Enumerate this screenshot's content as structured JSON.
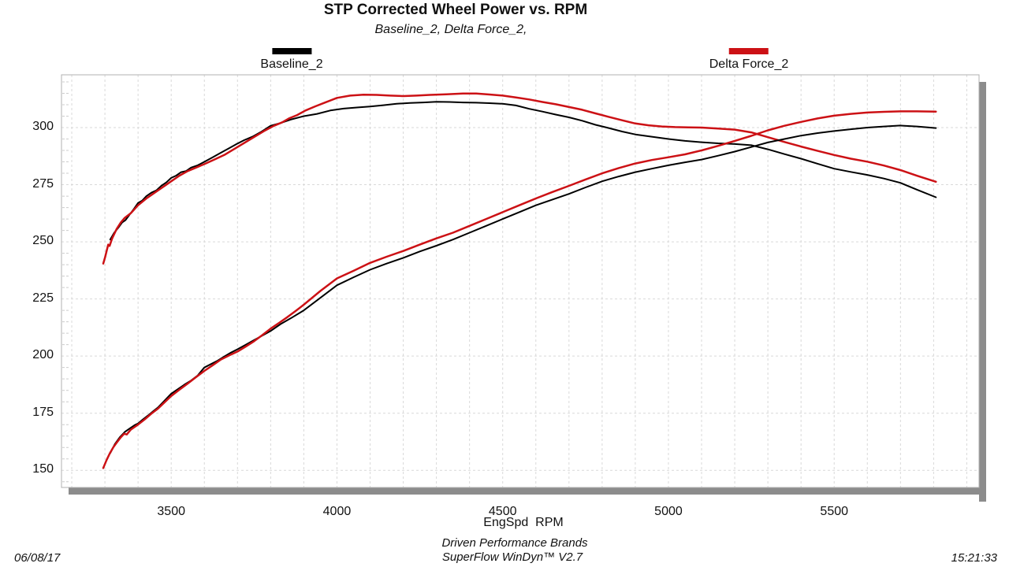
{
  "header": {
    "title": "STP Corrected Wheel Power vs. RPM",
    "subtitle": "Baseline_2, Delta Force_2,"
  },
  "legend": [
    {
      "label": "Baseline_2",
      "color": "#000000"
    },
    {
      "label": "Delta Force_2",
      "color": "#cc1115"
    }
  ],
  "footer": {
    "date": "06/08/17",
    "brand_line": "Driven Performance Brands",
    "software_line": "SuperFlow WinDyn™ V2.7",
    "time": "15:21:33"
  },
  "chart_data": {
    "type": "line",
    "title": "STP Corrected Wheel Power vs. RPM",
    "subtitle": "Baseline_2, Delta Force_2,",
    "xlabel": "EngSpd  RPM",
    "ylabel": "",
    "xlim": [
      3169,
      5937
    ],
    "ylim": [
      142.5,
      323.1
    ],
    "x_ticks": [
      3500,
      4000,
      4500,
      5000,
      5500
    ],
    "y_ticks": [
      150,
      175,
      200,
      225,
      250,
      275,
      300
    ],
    "x_grid_step": 100,
    "y_minor_tick_step": 5,
    "grid": "dashed",
    "legend_position": "top",
    "colors": {
      "grid": "#d9d9d9",
      "minor_tick": "#cccccc",
      "border": "#b0b0b0",
      "shadow": "#8c8c8c",
      "baseline": "#000000",
      "delta_force": "#cc1115"
    },
    "series": [
      {
        "name": "Baseline_2 upper curve",
        "color": "#000000",
        "width": 2,
        "points": [
          [
            3316,
            251
          ],
          [
            3328,
            254
          ],
          [
            3342,
            256.5
          ],
          [
            3352,
            258.5
          ],
          [
            3362,
            259.5
          ],
          [
            3375,
            262
          ],
          [
            3388,
            264.5
          ],
          [
            3400,
            267
          ],
          [
            3412,
            268
          ],
          [
            3425,
            270
          ],
          [
            3440,
            271.5
          ],
          [
            3455,
            272.5
          ],
          [
            3470,
            274.5
          ],
          [
            3485,
            276
          ],
          [
            3500,
            278
          ],
          [
            3515,
            279
          ],
          [
            3530,
            280.5
          ],
          [
            3545,
            281
          ],
          [
            3560,
            282.5
          ],
          [
            3580,
            283.5
          ],
          [
            3600,
            285
          ],
          [
            3625,
            287
          ],
          [
            3650,
            289
          ],
          [
            3675,
            291
          ],
          [
            3700,
            293
          ],
          [
            3720,
            294.5
          ],
          [
            3745,
            296
          ],
          [
            3770,
            298
          ],
          [
            3800,
            300.8
          ],
          [
            3830,
            302
          ],
          [
            3860,
            303.5
          ],
          [
            3900,
            305
          ],
          [
            3940,
            306
          ],
          [
            3980,
            307.5
          ],
          [
            4020,
            308.3
          ],
          [
            4060,
            308.8
          ],
          [
            4100,
            309.2
          ],
          [
            4140,
            309.8
          ],
          [
            4180,
            310.4
          ],
          [
            4220,
            310.8
          ],
          [
            4260,
            311
          ],
          [
            4300,
            311.3
          ],
          [
            4340,
            311.2
          ],
          [
            4380,
            311
          ],
          [
            4420,
            310.9
          ],
          [
            4460,
            310.7
          ],
          [
            4500,
            310.4
          ],
          [
            4540,
            309.7
          ],
          [
            4580,
            308.2
          ],
          [
            4620,
            307
          ],
          [
            4660,
            305.7
          ],
          [
            4700,
            304.5
          ],
          [
            4740,
            303
          ],
          [
            4780,
            301.2
          ],
          [
            4820,
            299.8
          ],
          [
            4860,
            298.3
          ],
          [
            4900,
            297
          ],
          [
            4950,
            296
          ],
          [
            5000,
            295
          ],
          [
            5050,
            294.2
          ],
          [
            5100,
            293.6
          ],
          [
            5150,
            293.1
          ],
          [
            5200,
            292.8
          ],
          [
            5250,
            292.3
          ],
          [
            5300,
            290.5
          ],
          [
            5350,
            288.4
          ],
          [
            5400,
            286.4
          ],
          [
            5450,
            284.2
          ],
          [
            5500,
            282
          ],
          [
            5550,
            280.6
          ],
          [
            5600,
            279.3
          ],
          [
            5650,
            277.7
          ],
          [
            5700,
            275.8
          ],
          [
            5750,
            272.8
          ],
          [
            5807,
            269.5
          ]
        ]
      },
      {
        "name": "Delta Force_2 upper curve",
        "color": "#cc1115",
        "width": 2.5,
        "points": [
          [
            3295,
            240.5
          ],
          [
            3301,
            243.5
          ],
          [
            3306,
            246.5
          ],
          [
            3310,
            248.8
          ],
          [
            3314,
            248.2
          ],
          [
            3322,
            251.5
          ],
          [
            3335,
            255.5
          ],
          [
            3348,
            258.5
          ],
          [
            3360,
            260.5
          ],
          [
            3378,
            262.5
          ],
          [
            3400,
            266
          ],
          [
            3425,
            269
          ],
          [
            3450,
            271.5
          ],
          [
            3475,
            274
          ],
          [
            3500,
            276.5
          ],
          [
            3525,
            279
          ],
          [
            3550,
            281
          ],
          [
            3575,
            282.5
          ],
          [
            3600,
            284
          ],
          [
            3630,
            286
          ],
          [
            3660,
            288
          ],
          [
            3700,
            291.5
          ],
          [
            3740,
            295
          ],
          [
            3780,
            298.5
          ],
          [
            3810,
            300.8
          ],
          [
            3835,
            302.3
          ],
          [
            3855,
            304
          ],
          [
            3880,
            305.5
          ],
          [
            3905,
            307.5
          ],
          [
            3935,
            309.3
          ],
          [
            3965,
            311
          ],
          [
            4000,
            313
          ],
          [
            4040,
            314
          ],
          [
            4080,
            314.4
          ],
          [
            4120,
            314.3
          ],
          [
            4160,
            314
          ],
          [
            4200,
            313.8
          ],
          [
            4240,
            314
          ],
          [
            4280,
            314.3
          ],
          [
            4330,
            314.6
          ],
          [
            4380,
            314.9
          ],
          [
            4420,
            314.9
          ],
          [
            4460,
            314.5
          ],
          [
            4500,
            314
          ],
          [
            4540,
            313.2
          ],
          [
            4580,
            312.3
          ],
          [
            4620,
            311.2
          ],
          [
            4660,
            310.2
          ],
          [
            4700,
            309
          ],
          [
            4740,
            307.8
          ],
          [
            4780,
            306.2
          ],
          [
            4820,
            304.7
          ],
          [
            4860,
            303.2
          ],
          [
            4900,
            301.8
          ],
          [
            4940,
            301
          ],
          [
            4980,
            300.5
          ],
          [
            5020,
            300.2
          ],
          [
            5060,
            300.1
          ],
          [
            5100,
            300
          ],
          [
            5150,
            299.6
          ],
          [
            5200,
            299.1
          ],
          [
            5250,
            297.9
          ],
          [
            5300,
            295.8
          ],
          [
            5350,
            293.7
          ],
          [
            5400,
            291.7
          ],
          [
            5450,
            289.8
          ],
          [
            5500,
            288
          ],
          [
            5550,
            286.4
          ],
          [
            5600,
            285.1
          ],
          [
            5650,
            283.4
          ],
          [
            5700,
            281.4
          ],
          [
            5750,
            278.9
          ],
          [
            5807,
            276.3
          ]
        ]
      },
      {
        "name": "Baseline_2 lower curve",
        "color": "#000000",
        "width": 2,
        "points": [
          [
            3316,
            157.5
          ],
          [
            3330,
            161.5
          ],
          [
            3345,
            164.5
          ],
          [
            3360,
            166.8
          ],
          [
            3375,
            168.3
          ],
          [
            3390,
            169.8
          ],
          [
            3400,
            170.5
          ],
          [
            3415,
            172.3
          ],
          [
            3430,
            174
          ],
          [
            3445,
            175.8
          ],
          [
            3460,
            177.5
          ],
          [
            3480,
            180.5
          ],
          [
            3500,
            183.5
          ],
          [
            3520,
            185.5
          ],
          [
            3540,
            187.5
          ],
          [
            3560,
            189.3
          ],
          [
            3580,
            191.5
          ],
          [
            3600,
            195
          ],
          [
            3620,
            196.5
          ],
          [
            3640,
            198
          ],
          [
            3660,
            199.8
          ],
          [
            3680,
            201.5
          ],
          [
            3700,
            203
          ],
          [
            3725,
            205
          ],
          [
            3750,
            207
          ],
          [
            3775,
            209
          ],
          [
            3800,
            211
          ],
          [
            3830,
            214
          ],
          [
            3860,
            216.5
          ],
          [
            3900,
            220
          ],
          [
            3950,
            225.5
          ],
          [
            4000,
            231
          ],
          [
            4050,
            234.5
          ],
          [
            4100,
            237.8
          ],
          [
            4150,
            240.5
          ],
          [
            4200,
            243
          ],
          [
            4250,
            245.8
          ],
          [
            4300,
            248.3
          ],
          [
            4350,
            251
          ],
          [
            4400,
            254
          ],
          [
            4450,
            257
          ],
          [
            4500,
            260
          ],
          [
            4550,
            263
          ],
          [
            4600,
            266
          ],
          [
            4650,
            268.5
          ],
          [
            4700,
            271
          ],
          [
            4750,
            273.8
          ],
          [
            4800,
            276.5
          ],
          [
            4850,
            278.6
          ],
          [
            4900,
            280.5
          ],
          [
            4950,
            282
          ],
          [
            5000,
            283.5
          ],
          [
            5050,
            284.8
          ],
          [
            5100,
            286
          ],
          [
            5150,
            287.7
          ],
          [
            5200,
            289.5
          ],
          [
            5250,
            291.5
          ],
          [
            5300,
            293.5
          ],
          [
            5350,
            295
          ],
          [
            5400,
            296.5
          ],
          [
            5450,
            297.6
          ],
          [
            5500,
            298.5
          ],
          [
            5550,
            299.3
          ],
          [
            5600,
            300
          ],
          [
            5650,
            300.5
          ],
          [
            5700,
            300.9
          ],
          [
            5750,
            300.5
          ],
          [
            5807,
            299.8
          ]
        ]
      },
      {
        "name": "Delta Force_2 lower curve",
        "color": "#cc1115",
        "width": 2.5,
        "points": [
          [
            3295,
            151
          ],
          [
            3305,
            154.5
          ],
          [
            3315,
            157.5
          ],
          [
            3325,
            160
          ],
          [
            3335,
            162
          ],
          [
            3348,
            164.5
          ],
          [
            3358,
            166
          ],
          [
            3366,
            165.7
          ],
          [
            3378,
            167.8
          ],
          [
            3390,
            169
          ],
          [
            3400,
            170
          ],
          [
            3420,
            172.3
          ],
          [
            3440,
            174.8
          ],
          [
            3460,
            177
          ],
          [
            3480,
            179.8
          ],
          [
            3500,
            182.5
          ],
          [
            3525,
            185.3
          ],
          [
            3550,
            188
          ],
          [
            3575,
            190.8
          ],
          [
            3600,
            193.5
          ],
          [
            3625,
            196
          ],
          [
            3650,
            198.5
          ],
          [
            3675,
            200.3
          ],
          [
            3700,
            202
          ],
          [
            3725,
            204.2
          ],
          [
            3750,
            206.5
          ],
          [
            3775,
            209.2
          ],
          [
            3800,
            212
          ],
          [
            3825,
            214.5
          ],
          [
            3850,
            217
          ],
          [
            3875,
            219.7
          ],
          [
            3900,
            222.5
          ],
          [
            3950,
            228.5
          ],
          [
            4000,
            234
          ],
          [
            4050,
            237.3
          ],
          [
            4100,
            240.8
          ],
          [
            4150,
            243.5
          ],
          [
            4200,
            246
          ],
          [
            4250,
            248.8
          ],
          [
            4300,
            251.5
          ],
          [
            4350,
            254
          ],
          [
            4400,
            257
          ],
          [
            4450,
            260
          ],
          [
            4500,
            263
          ],
          [
            4550,
            266
          ],
          [
            4600,
            269
          ],
          [
            4650,
            271.8
          ],
          [
            4700,
            274.5
          ],
          [
            4750,
            277.3
          ],
          [
            4800,
            280
          ],
          [
            4850,
            282.3
          ],
          [
            4900,
            284.3
          ],
          [
            4950,
            285.8
          ],
          [
            5000,
            287
          ],
          [
            5050,
            288.3
          ],
          [
            5100,
            290
          ],
          [
            5150,
            292
          ],
          [
            5200,
            294.2
          ],
          [
            5250,
            296.4
          ],
          [
            5300,
            298.8
          ],
          [
            5350,
            300.8
          ],
          [
            5400,
            302.5
          ],
          [
            5450,
            304
          ],
          [
            5500,
            305.2
          ],
          [
            5550,
            306
          ],
          [
            5600,
            306.6
          ],
          [
            5650,
            306.9
          ],
          [
            5700,
            307.1
          ],
          [
            5750,
            307.1
          ],
          [
            5807,
            307
          ]
        ]
      }
    ]
  }
}
